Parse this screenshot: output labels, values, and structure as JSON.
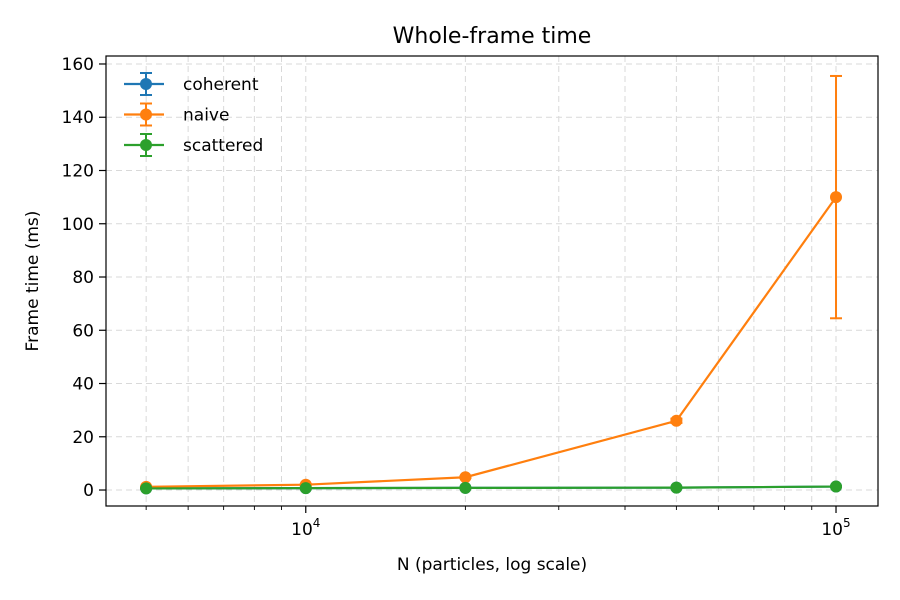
{
  "chart_data": {
    "type": "line",
    "title": "Whole-frame time",
    "xlabel": "N (particles, log scale)",
    "ylabel": "Frame time (ms)",
    "xscale": "log",
    "xlim": [
      4200,
      120000
    ],
    "ylim": [
      -6,
      163
    ],
    "yticks": [
      0,
      20,
      40,
      60,
      80,
      100,
      120,
      140,
      160
    ],
    "xticks_major": [
      {
        "value": 10000,
        "base": "10",
        "exp": "4"
      },
      {
        "value": 100000,
        "base": "10",
        "exp": "5"
      }
    ],
    "grid": true,
    "legend_position": "upper-left",
    "x": [
      5000,
      10000,
      20000,
      50000,
      100000
    ],
    "series": [
      {
        "name": "coherent",
        "color": "#1f77b4",
        "values": [
          0.6,
          0.7,
          0.8,
          0.9,
          1.3
        ],
        "err": [
          0.05,
          0.05,
          0.05,
          0.05,
          0.1
        ]
      },
      {
        "name": "naive",
        "color": "#ff7f0e",
        "values": [
          1.2,
          2.0,
          4.8,
          26.0,
          110.0
        ],
        "err": [
          0.1,
          0.2,
          0.3,
          0.8,
          45.5
        ]
      },
      {
        "name": "scattered",
        "color": "#2ca02c",
        "values": [
          0.6,
          0.7,
          0.8,
          0.9,
          1.3
        ],
        "err": [
          0.05,
          0.05,
          0.05,
          0.05,
          0.1
        ]
      }
    ]
  }
}
